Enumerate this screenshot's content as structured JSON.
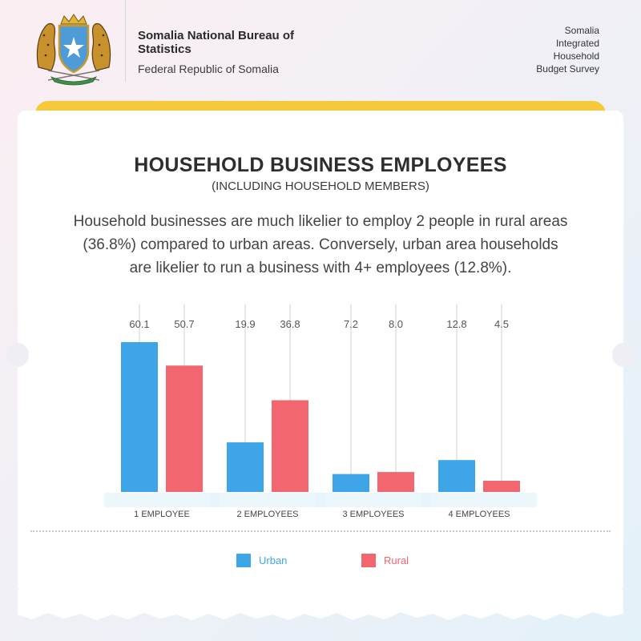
{
  "header": {
    "org_name": "Somalia National Bureau of Statistics",
    "org_sub": "Federal Republic of Somalia",
    "survey_lines": [
      "Somalia",
      "Integrated",
      "Household",
      "Budget Survey"
    ]
  },
  "title": "HOUSEHOLD BUSINESS EMPLOYEES",
  "subtitle": "(INCLUDING HOUSEHOLD MEMBERS)",
  "description": "Household businesses are much likelier to employ 2 people in rural areas (36.8%) compared to urban areas. Conversely, urban area households are likelier to run a business with 4+ employees (12.8%).",
  "colors": {
    "urban": "#3ea6e8",
    "rural": "#f26670",
    "accent": "#f6c93a"
  },
  "chart_data": {
    "type": "bar",
    "categories": [
      "1 EMPLOYEE",
      "2 EMPLOYEES",
      "3 EMPLOYEES",
      "4 EMPLOYEES"
    ],
    "series": [
      {
        "name": "Urban",
        "values": [
          60.1,
          19.9,
          7.2,
          12.8
        ],
        "labels": [
          "60.1",
          "19.9",
          "7.2",
          "12.8"
        ]
      },
      {
        "name": "Rural",
        "values": [
          50.7,
          36.8,
          8.0,
          4.5
        ],
        "labels": [
          "50.7",
          "36.8",
          "8.0",
          "4.5"
        ]
      }
    ],
    "ylim": [
      0,
      60.1
    ],
    "legend": "bottom"
  }
}
